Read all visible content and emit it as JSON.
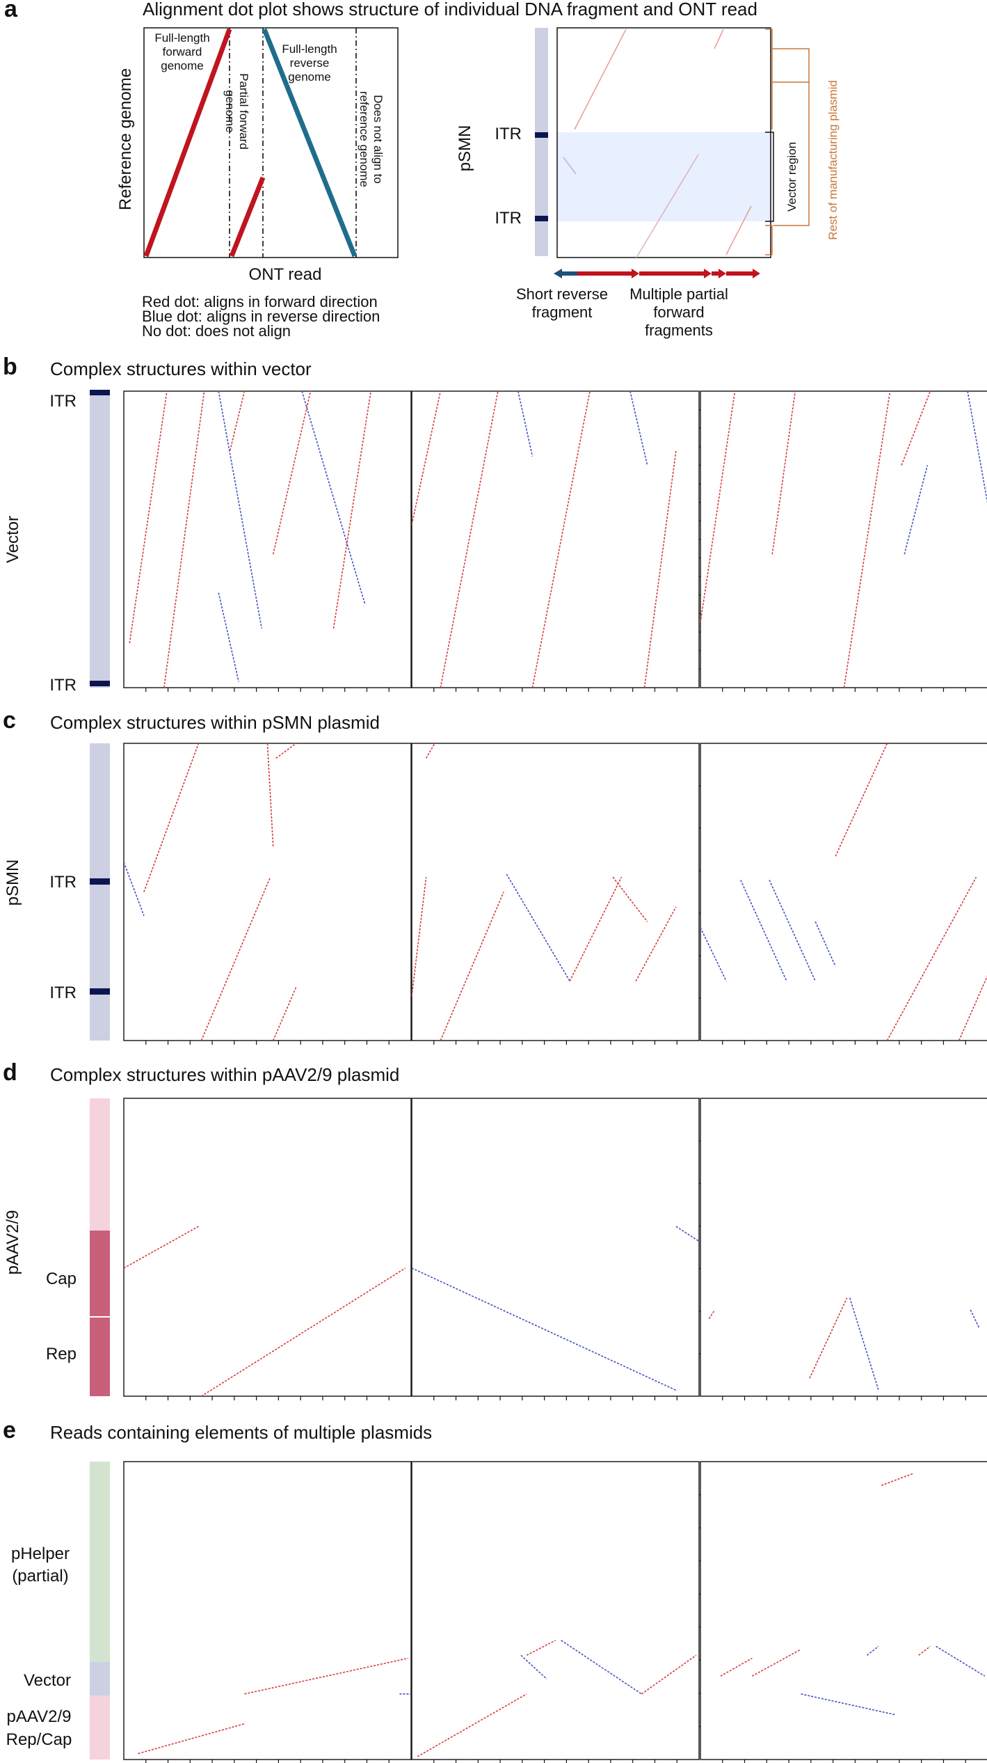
{
  "panel_a": {
    "letter": "a",
    "title": "Alignment dot plot shows structure of individual DNA fragment and ONT read",
    "schematic": {
      "y_label": "Reference genome",
      "x_label": "ONT read",
      "region_full_forward": "Full-length\nforward\ngenome",
      "region_partial_forward": "Partial forward\ngenome",
      "region_full_reverse": "Full-length\nreverse\ngenome",
      "region_no_align": "Does not align to\nreference genome"
    },
    "legend": [
      "Red dot: aligns in forward direction",
      "Blue dot: aligns in reverse direction",
      "No dot: does not align"
    ],
    "example": {
      "y_label": "pSMN",
      "itr_labels": [
        "ITR",
        "ITR"
      ],
      "vector_region_label": "Vector region",
      "manufacturing_label": "Rest of manufacturing plasmid",
      "short_reverse_label": "Short reverse\nfragment",
      "partial_forward_label": "Multiple partial\nforward\nfragments"
    }
  },
  "panel_b": {
    "letter": "b",
    "title": "Complex structures within vector",
    "y_label": "Vector",
    "itr_top": "ITR",
    "itr_bottom": "ITR"
  },
  "panel_c": {
    "letter": "c",
    "title": "Complex structures within pSMN plasmid",
    "y_label": "pSMN",
    "itr_labels": [
      "ITR",
      "ITR"
    ]
  },
  "panel_d": {
    "letter": "d",
    "title": "Complex structures within pAAV2/9 plasmid",
    "y_label": "pAAV2/9",
    "region_labels": [
      "Cap",
      "Rep"
    ]
  },
  "panel_e": {
    "letter": "e",
    "title": "Reads containing elements of multiple plasmids",
    "region_labels": [
      "pHelper\n(partial)",
      "Vector",
      "pAAV2/9\nRep/Cap"
    ]
  },
  "colors": {
    "forward": "#c0141f",
    "reverse": "#1f6d8c",
    "forward_dot": "#d43a3a",
    "reverse_dot": "#4050c0",
    "vector_bar": "#cdcfe2",
    "itr": "#0b1650",
    "vector_region_bg": "#e8efff",
    "cap_rep": "#c8607a",
    "pink_region": "#f5d3dc",
    "helper_green": "#d3e3cf",
    "orange": "#c8763a"
  }
}
